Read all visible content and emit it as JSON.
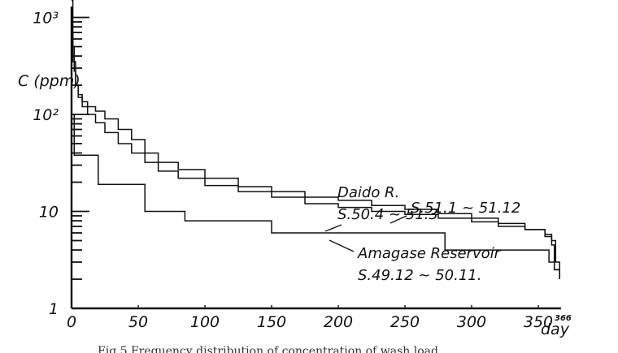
{
  "chart_data": {
    "type": "line",
    "title": "",
    "caption": "Fig.5  Frequency distribution of concentration of wash load",
    "xlabel": "day",
    "ylabel": "C (ppm)",
    "x_end_label": "366",
    "xlim": [
      0,
      366
    ],
    "ylim": [
      1,
      2000
    ],
    "yscale": "log",
    "grid": false,
    "x_ticks": [
      {
        "value": 0,
        "label": "0"
      },
      {
        "value": 50,
        "label": "50"
      },
      {
        "value": 100,
        "label": "100"
      },
      {
        "value": 150,
        "label": "150"
      },
      {
        "value": 200,
        "label": "200"
      },
      {
        "value": 250,
        "label": "250"
      },
      {
        "value": 300,
        "label": "300"
      },
      {
        "value": 350,
        "label": "350"
      }
    ],
    "y_ticks": [
      {
        "value": 1,
        "label": "1"
      },
      {
        "value": 10,
        "label": "10"
      },
      {
        "value": 100,
        "label": "10²"
      },
      {
        "value": 1000,
        "label": "10³"
      }
    ],
    "series": [
      {
        "name": "Daido R. S.50.4 ~ 51.3",
        "label_lines": [
          "Daido R.",
          "S.50.4 ~ 51.3"
        ],
        "x": [
          0,
          1,
          2,
          3,
          5,
          8,
          12,
          18,
          25,
          35,
          45,
          55,
          65,
          80,
          100,
          125,
          150,
          175,
          200,
          225,
          250,
          275,
          300,
          320,
          340,
          355,
          360,
          362,
          366
        ],
        "y": [
          1500,
          500,
          280,
          200,
          160,
          135,
          120,
          108,
          90,
          70,
          55,
          40,
          32,
          27,
          22,
          18,
          16,
          14,
          13,
          11.5,
          10.5,
          9.5,
          8.5,
          7.5,
          6.5,
          5.5,
          4.5,
          2.5,
          2
        ]
      },
      {
        "name": "S.51.1 ~ 51.12",
        "label_lines": [
          "S.51.1 ~ 51.12"
        ],
        "x": [
          0,
          1,
          3,
          5,
          8,
          12,
          18,
          25,
          35,
          45,
          55,
          65,
          80,
          100,
          125,
          150,
          175,
          200,
          225,
          250,
          275,
          300,
          320,
          340,
          355,
          360,
          363,
          366
        ],
        "y": [
          700,
          350,
          200,
          150,
          120,
          100,
          82,
          65,
          50,
          40,
          32,
          26,
          22,
          18.5,
          16,
          14,
          12,
          11,
          10,
          9.3,
          8.5,
          7.8,
          7,
          6.5,
          5.8,
          5,
          3,
          2
        ]
      },
      {
        "name": "Amagase Reservoir S.49.12 ~ 50.11.",
        "label_lines": [
          "Amagase Reservoir",
          "S.49.12 ~ 50.11."
        ],
        "x": [
          0,
          2,
          20,
          55,
          85,
          150,
          280,
          350,
          358,
          362,
          366
        ],
        "y": [
          100,
          38,
          19,
          10,
          8,
          6,
          4,
          4,
          3,
          2.5,
          2
        ]
      }
    ]
  }
}
